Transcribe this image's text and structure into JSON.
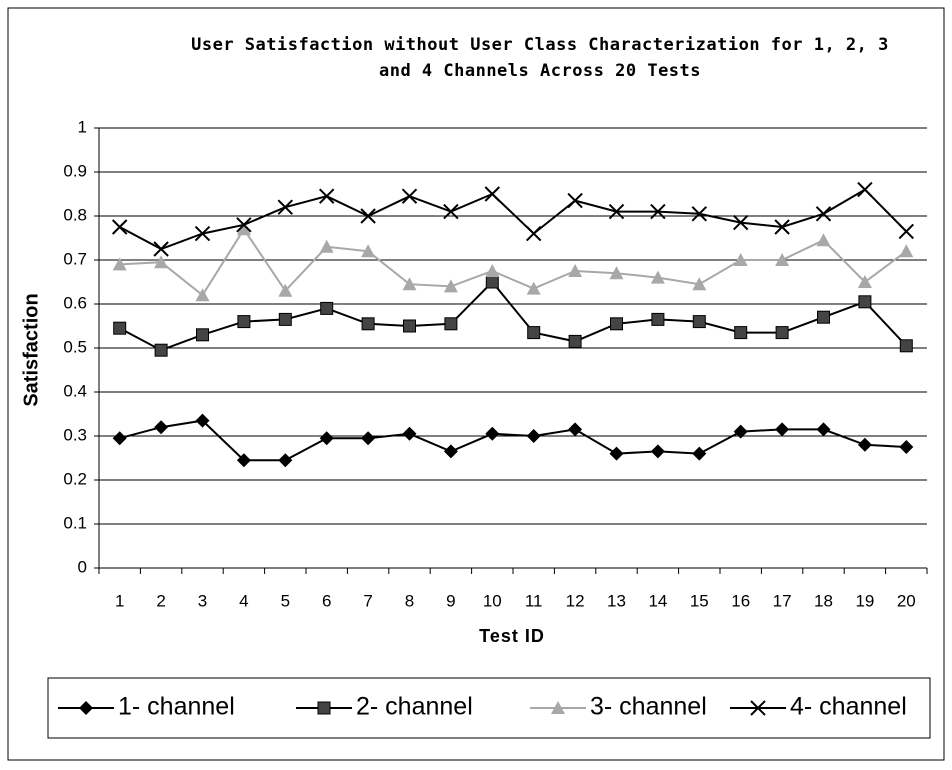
{
  "chart_data": {
    "type": "line",
    "title": [
      "User Satisfaction without User Class Characterization for 1, 2, 3",
      "and 4 Channels Across 20 Tests"
    ],
    "xlabel": "Test ID",
    "ylabel": "Satisfaction",
    "categories": [
      "1",
      "2",
      "3",
      "4",
      "5",
      "6",
      "7",
      "8",
      "9",
      "10",
      "11",
      "12",
      "13",
      "14",
      "15",
      "16",
      "17",
      "18",
      "19",
      "20"
    ],
    "series": [
      {
        "name": "1- channel",
        "color": "#000000",
        "marker": "diamond",
        "values": [
          0.295,
          0.32,
          0.335,
          0.245,
          0.245,
          0.295,
          0.295,
          0.305,
          0.265,
          0.305,
          0.3,
          0.315,
          0.26,
          0.265,
          0.26,
          0.31,
          0.315,
          0.315,
          0.28,
          0.275
        ]
      },
      {
        "name": "2- channel",
        "color": "#000000",
        "marker": "square",
        "values": [
          0.545,
          0.495,
          0.53,
          0.56,
          0.565,
          0.59,
          0.555,
          0.55,
          0.555,
          0.65,
          0.535,
          0.515,
          0.555,
          0.565,
          0.56,
          0.535,
          0.535,
          0.57,
          0.605,
          0.505
        ]
      },
      {
        "name": "3- channel",
        "color": "#a8a8a8",
        "marker": "triangle",
        "values": [
          0.69,
          0.695,
          0.62,
          0.77,
          0.63,
          0.73,
          0.72,
          0.645,
          0.64,
          0.675,
          0.635,
          0.675,
          0.67,
          0.66,
          0.645,
          0.7,
          0.7,
          0.745,
          0.65,
          0.72
        ]
      },
      {
        "name": "4- channel",
        "color": "#000000",
        "marker": "x",
        "values": [
          0.775,
          0.725,
          0.76,
          0.78,
          0.82,
          0.845,
          0.8,
          0.845,
          0.81,
          0.85,
          0.76,
          0.835,
          0.81,
          0.81,
          0.805,
          0.785,
          0.775,
          0.805,
          0.86,
          0.765
        ]
      }
    ],
    "ylim": [
      0,
      1
    ],
    "yticks": [
      0,
      0.1,
      0.2,
      0.3,
      0.4,
      0.5,
      0.6,
      0.7,
      0.8,
      0.9,
      1
    ],
    "grid": true,
    "legend": "bottom"
  }
}
